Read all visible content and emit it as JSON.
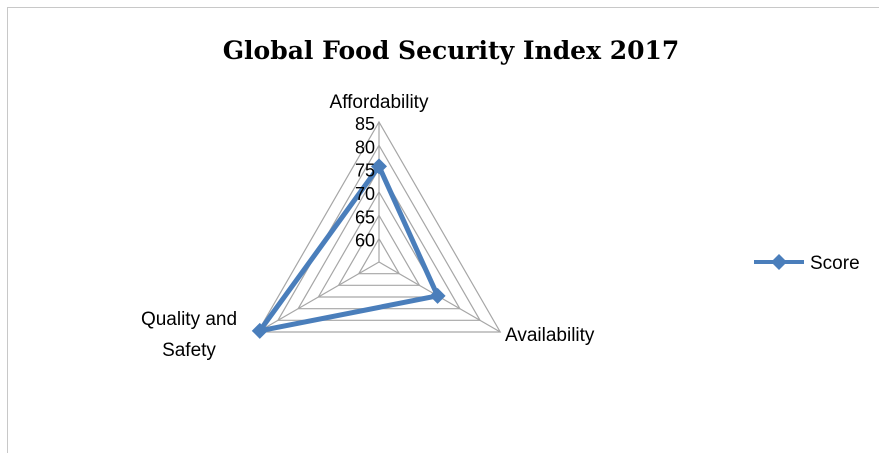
{
  "chart_data": {
    "type": "radar",
    "title": "Global Food Security Index 2017",
    "axes": [
      "Affordability",
      "Availability",
      "Quality and Safety"
    ],
    "axis_label_lines": [
      [
        "Affordability"
      ],
      [
        "Availability"
      ],
      [
        "Quality and",
        "Safety"
      ]
    ],
    "ticks": [
      60,
      65,
      70,
      75,
      80,
      85
    ],
    "rlim": [
      55,
      85
    ],
    "grid": true,
    "legend": "right",
    "series": [
      {
        "name": "Score",
        "values": [
          75.5,
          69.5,
          84.5
        ],
        "color": "#4a7ebb",
        "marker": "diamond"
      }
    ]
  }
}
